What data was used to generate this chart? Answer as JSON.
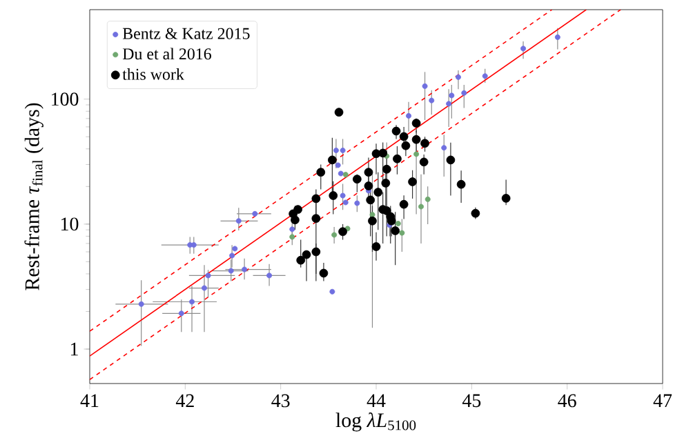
{
  "chart_data": {
    "type": "scatter",
    "xlabel": "log *λL*$_{5100}$",
    "ylabel": "Rest-frame *τ*$_{final}$ (days)",
    "xlim": [
      41,
      47
    ],
    "ylim": [
      0.53,
      520
    ],
    "xticks": [
      41,
      42,
      43,
      44,
      45,
      46,
      47
    ],
    "yticks": [
      1,
      10,
      100
    ],
    "log": "y",
    "legend": "top left",
    "series": [
      {
        "name": "Bentz & Katz 2015",
        "marker": "circle",
        "color": "#7070e0",
        "x": [
          41.54,
          41.96,
          42.07,
          42.05,
          42.09,
          42.2,
          42.24,
          42.48,
          42.49,
          42.52,
          42.56,
          42.62,
          42.73,
          42.88,
          43.12,
          43.54,
          43.58,
          43.65,
          43.6,
          43.63,
          43.65,
          43.68,
          43.8,
          43.92,
          44.14,
          44.34,
          44.51,
          44.58,
          44.71,
          44.76,
          44.79,
          44.86,
          44.92,
          45.14,
          45.54,
          45.9
        ],
        "values": [
          2.29,
          1.93,
          2.39,
          6.81,
          6.81,
          3.08,
          3.88,
          4.23,
          5.6,
          6.36,
          10.6,
          4.34,
          12.1,
          3.88,
          9.1,
          2.88,
          38.9,
          38.9,
          29.6,
          25.4,
          16.9,
          14.9,
          14.7,
          18.5,
          9.83,
          73.5,
          127,
          97.6,
          40.8,
          91.8,
          107,
          150,
          112,
          153,
          254,
          313
        ],
        "errors": [
          [
            1.06,
            3.56
          ],
          [
            1.37,
            2.49
          ],
          [
            1.37,
            3.2
          ],
          [
            5.8,
            7.9
          ],
          [
            5.8,
            7.9
          ],
          [
            1.37,
            4.7
          ],
          [
            2.6,
            4.3
          ],
          [
            3.5,
            5.2
          ],
          [
            4.5,
            6.8
          ],
          null,
          [
            8.9,
            13.5
          ],
          [
            3.6,
            5.3
          ],
          null,
          [
            3.2,
            4.8
          ],
          [
            7.5,
            10.8
          ],
          null,
          [
            28,
            48
          ],
          [
            30,
            48
          ],
          null,
          null,
          [
            13,
            21
          ],
          null,
          [
            12.5,
            17
          ],
          null,
          [
            8,
            12
          ],
          [
            55,
            95
          ],
          [
            68,
            165
          ],
          [
            75,
            118
          ],
          [
            24,
            52
          ],
          [
            60,
            120
          ],
          [
            70,
            130
          ],
          [
            120,
            170
          ],
          [
            85,
            130
          ],
          [
            135,
            175
          ],
          [
            210,
            290
          ],
          [
            250,
            370
          ]
        ],
        "xerrors": [
          [
            41.27,
            41.82
          ],
          [
            41.76,
            42.16
          ],
          [
            41.66,
            42.33
          ],
          [
            41.75,
            42.35
          ],
          null,
          [
            42.04,
            42.35
          ],
          [
            42.04,
            42.52
          ],
          [
            42.28,
            42.66
          ],
          null,
          null,
          [
            42.37,
            42.76
          ],
          [
            42.42,
            42.9
          ],
          [
            42.54,
            42.9
          ],
          [
            42.71,
            43.05
          ],
          null,
          null,
          null,
          null,
          null,
          null,
          null,
          null,
          null,
          null,
          null,
          null,
          null,
          null,
          null,
          null,
          null,
          null,
          null,
          null,
          null,
          null
        ]
      },
      {
        "name": "Du et al 2016",
        "marker": "circle",
        "color": "#70a870",
        "x": [
          43.12,
          43.56,
          43.7,
          43.68,
          43.96,
          44.11,
          44.42,
          44.54,
          44.47,
          44.23,
          44.27
        ],
        "values": [
          7.9,
          8.2,
          9.2,
          24.9,
          11.9,
          35,
          36.3,
          15.8,
          13.8,
          10.1,
          8.5
        ],
        "errors": [
          [
            6.8,
            9
          ],
          [
            7,
            9.5
          ],
          null,
          null,
          [
            1.48,
            27
          ],
          [
            25,
            45
          ],
          [
            12,
            50
          ],
          [
            10,
            20
          ],
          [
            7,
            25
          ],
          null,
          [
            6,
            11
          ]
        ]
      },
      {
        "name": "this work",
        "marker": "circle",
        "color": "#000000",
        "x": [
          43.13,
          43.15,
          43.18,
          43.21,
          43.27,
          43.37,
          43.37,
          43.37,
          43.42,
          43.45,
          43.54,
          43.55,
          43.61,
          43.65,
          43.8,
          43.92,
          43.92,
          43.94,
          43.96,
          44.0,
          44.0,
          44.02,
          44.07,
          44.07,
          44.1,
          44.11,
          44.11,
          44.15,
          44.16,
          44.2,
          44.21,
          44.22,
          44.29,
          44.29,
          44.31,
          44.38,
          44.42,
          44.42,
          44.5,
          44.51,
          44.78,
          44.89,
          45.04,
          45.36
        ],
        "values": [
          12.1,
          10.8,
          13.1,
          5.14,
          5.7,
          6.0,
          11.1,
          16.0,
          26.0,
          4.05,
          32.6,
          16.9,
          78.6,
          8.7,
          22.9,
          26.0,
          20.2,
          15.6,
          10.6,
          6.6,
          36.6,
          18.0,
          37.0,
          13.1,
          21.3,
          27.5,
          12.8,
          11.5,
          10.6,
          8.85,
          55.5,
          33.3,
          50.2,
          14.4,
          42.4,
          21.8,
          64.2,
          47.5,
          31.4,
          44.3,
          32.6,
          20.8,
          12.2,
          16.1
        ],
        "errors": [
          null,
          [
            9,
            14
          ],
          null,
          [
            4.5,
            7.5
          ],
          [
            3.5,
            6.1
          ],
          [
            3.5,
            7
          ],
          [
            4.0,
            14.9
          ],
          [
            12,
            19
          ],
          [
            19,
            30
          ],
          [
            3.5,
            4.9
          ],
          [
            17.8,
            49
          ],
          [
            12,
            22
          ],
          null,
          [
            7.5,
            10
          ],
          [
            18,
            25
          ],
          [
            18,
            34
          ],
          [
            15,
            24
          ],
          [
            8,
            20
          ],
          [
            6,
            14
          ],
          [
            5.1,
            8.6
          ],
          [
            25,
            44
          ],
          [
            9,
            26
          ],
          [
            20,
            45
          ],
          [
            7,
            18
          ],
          [
            13,
            28
          ],
          [
            16,
            35
          ],
          [
            8,
            16
          ],
          [
            7,
            14
          ],
          [
            8,
            12
          ],
          [
            4.7,
            12.5
          ],
          [
            48,
            62
          ],
          [
            25,
            42
          ],
          [
            42,
            60
          ],
          [
            11,
            17
          ],
          [
            35,
            50
          ],
          [
            16,
            27
          ],
          [
            54,
            70
          ],
          [
            38,
            56
          ],
          [
            25,
            36
          ],
          [
            38,
            50
          ],
          [
            16.9,
            44.9
          ],
          [
            14.8,
            26.8
          ],
          [
            11,
            13.6
          ],
          [
            14.2,
            22.7
          ]
        ]
      },
      {
        "type": "line",
        "marker": "none",
        "color": "#ff0000",
        "line_style": "solid",
        "x": [
          41,
          46.2
        ],
        "values": [
          0.88,
          520
        ]
      },
      {
        "type": "line",
        "marker": "none",
        "color": "#ff0000",
        "line_style": "dashed",
        "x": [
          41,
          45.84
        ],
        "values": [
          1.39,
          520
        ]
      },
      {
        "type": "line",
        "marker": "none",
        "color": "#ff0000",
        "line_style": "dashed",
        "x": [
          41,
          46.56
        ],
        "values": [
          0.57,
          520
        ]
      }
    ]
  }
}
